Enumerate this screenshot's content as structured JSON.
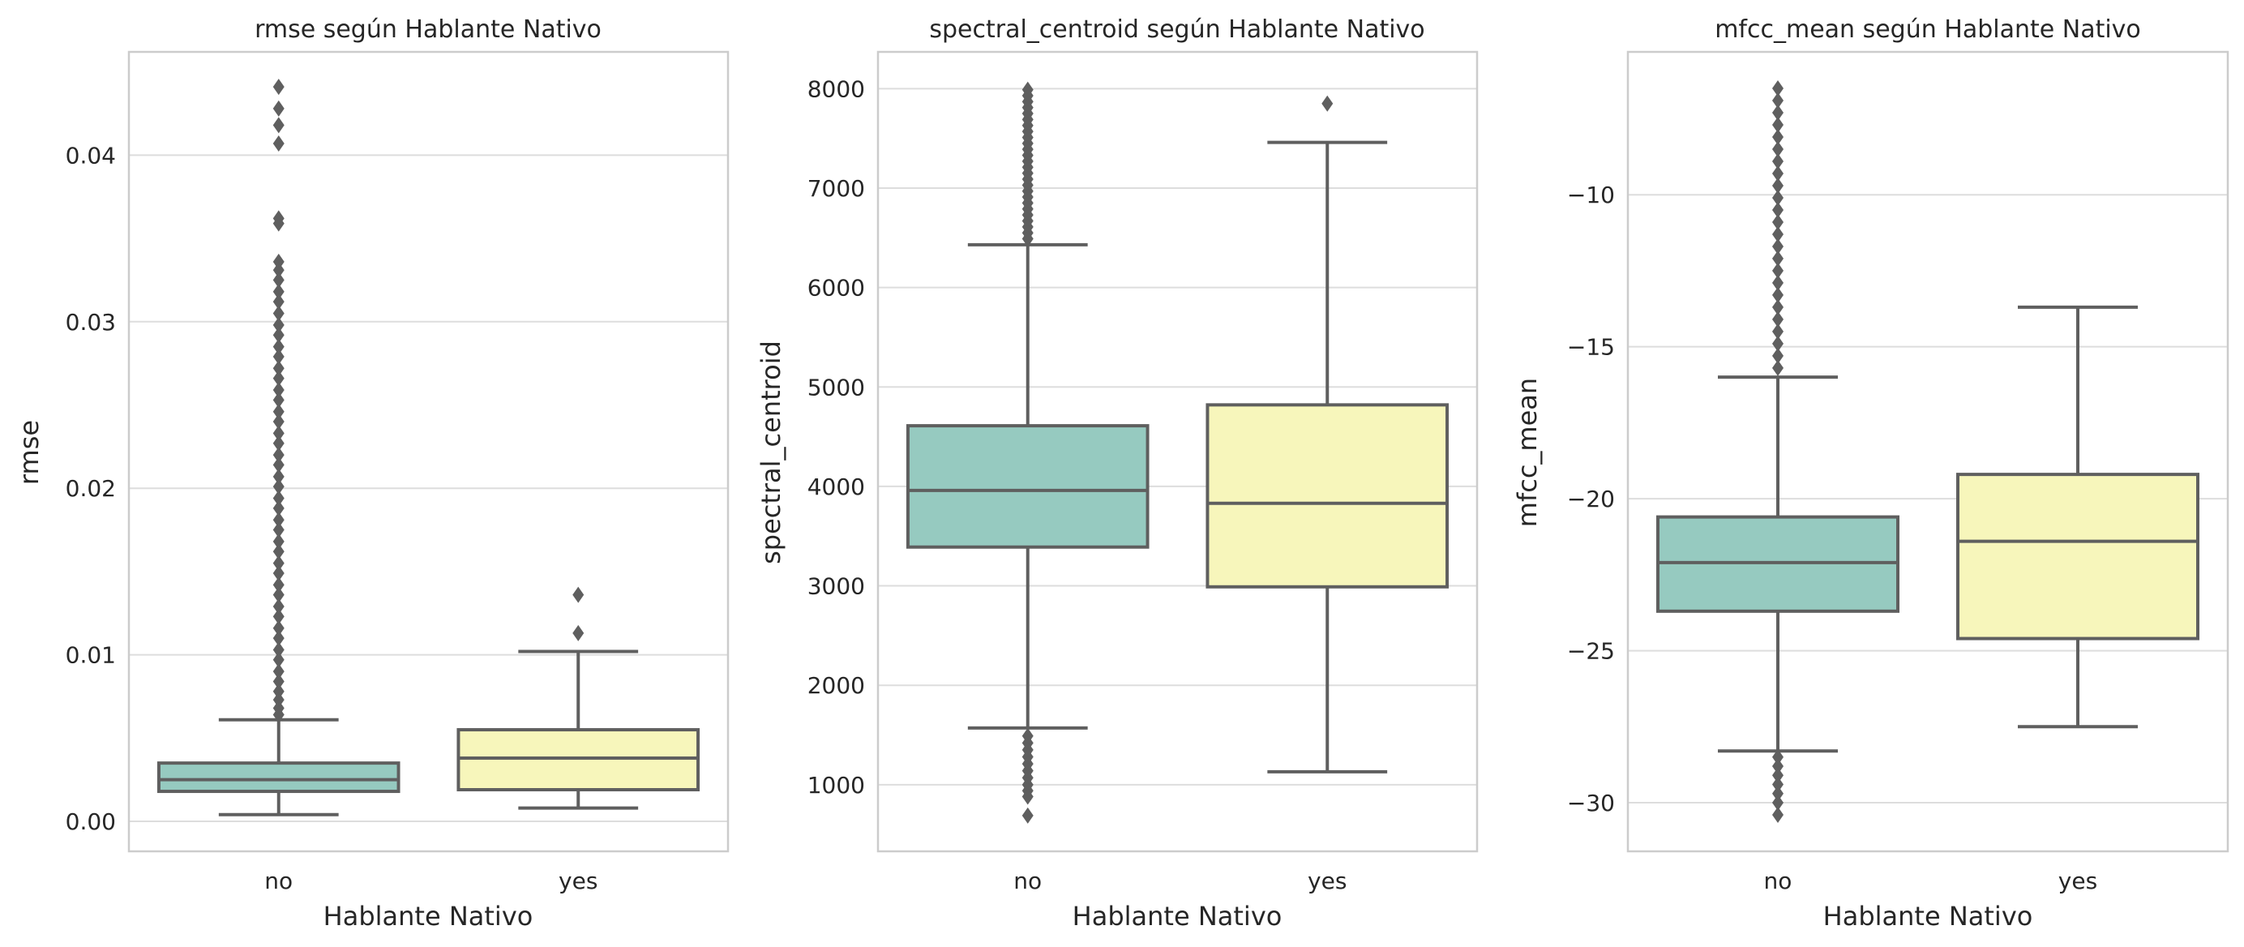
{
  "chart_data": [
    {
      "type": "box",
      "title": "rmse según Hablante Nativo",
      "xlabel": "Hablante Nativo",
      "ylabel": "rmse",
      "categories": [
        "no",
        "yes"
      ],
      "ylim": [
        -0.0018,
        0.0462
      ],
      "yticks": [
        0.0,
        0.01,
        0.02,
        0.03,
        0.04
      ],
      "ytick_labels": [
        "0.00",
        "0.01",
        "0.02",
        "0.03",
        "0.04"
      ],
      "grid": true,
      "boxes": [
        {
          "category": "no",
          "color": "#96cac0",
          "whislo": 0.0004,
          "q1": 0.0018,
          "median": 0.0025,
          "q3": 0.0035,
          "whishi": 0.0061,
          "fliers": [
            0.0441,
            0.0428,
            0.0418,
            0.0407,
            0.0362,
            0.0359,
            0.0336,
            0.0331,
            0.0325,
            0.0318,
            0.0312,
            0.0305,
            0.0298,
            0.0292,
            0.0285,
            0.0279,
            0.0272,
            0.0266,
            0.0259,
            0.0253,
            0.0246,
            0.024,
            0.0233,
            0.0227,
            0.022,
            0.0214,
            0.0207,
            0.0201,
            0.0194,
            0.0188,
            0.0181,
            0.0175,
            0.0168,
            0.0162,
            0.0155,
            0.0149,
            0.0142,
            0.0136,
            0.0129,
            0.0123,
            0.0116,
            0.011,
            0.0103,
            0.0097,
            0.009,
            0.0084,
            0.0078,
            0.0073,
            0.0068,
            0.0064
          ]
        },
        {
          "category": "yes",
          "color": "#f7f6bb",
          "whislo": 0.0008,
          "q1": 0.0019,
          "median": 0.0038,
          "q3": 0.0055,
          "whishi": 0.0102,
          "fliers": [
            0.0136,
            0.0113
          ]
        }
      ]
    },
    {
      "type": "box",
      "title": "spectral_centroid según Hablante Nativo",
      "xlabel": "Hablante Nativo",
      "ylabel": "spectral_centroid",
      "categories": [
        "no",
        "yes"
      ],
      "ylim": [
        330,
        8370
      ],
      "yticks": [
        1000,
        2000,
        3000,
        4000,
        5000,
        6000,
        7000,
        8000
      ],
      "ytick_labels": [
        "1000",
        "2000",
        "3000",
        "4000",
        "5000",
        "6000",
        "7000",
        "8000"
      ],
      "grid": true,
      "boxes": [
        {
          "category": "no",
          "color": "#96cac0",
          "whislo": 1570,
          "q1": 3390,
          "median": 3960,
          "q3": 4610,
          "whishi": 6430,
          "fliers": [
            7990,
            7930,
            7870,
            7810,
            7750,
            7690,
            7630,
            7570,
            7510,
            7450,
            7390,
            7330,
            7270,
            7210,
            7150,
            7090,
            7030,
            6970,
            6910,
            6850,
            6790,
            6730,
            6670,
            6610,
            6550,
            6490,
            1490,
            1420,
            1350,
            1280,
            1210,
            1140,
            1070,
            1000,
            940,
            880,
            690
          ]
        },
        {
          "category": "yes",
          "color": "#f7f6bb",
          "whislo": 1130,
          "q1": 2990,
          "median": 3830,
          "q3": 4820,
          "whishi": 7460,
          "fliers": [
            7850
          ]
        }
      ]
    },
    {
      "type": "box",
      "title": "mfcc_mean según Hablante Nativo",
      "xlabel": "Hablante Nativo",
      "ylabel": "mfcc_mean",
      "categories": [
        "no",
        "yes"
      ],
      "ylim": [
        -31.6,
        -5.3
      ],
      "yticks": [
        -30,
        -25,
        -20,
        -15,
        -10
      ],
      "ytick_labels": [
        "−30",
        "−25",
        "−20",
        "−15",
        "−10"
      ],
      "grid": true,
      "boxes": [
        {
          "category": "no",
          "color": "#96cac0",
          "whislo": -28.3,
          "q1": -23.7,
          "median": -22.1,
          "q3": -20.6,
          "whishi": -16.0,
          "fliers": [
            -6.5,
            -6.9,
            -7.3,
            -7.7,
            -8.1,
            -8.5,
            -8.9,
            -9.3,
            -9.7,
            -10.1,
            -10.5,
            -10.9,
            -11.3,
            -11.7,
            -12.1,
            -12.5,
            -12.9,
            -13.3,
            -13.7,
            -14.1,
            -14.5,
            -14.9,
            -15.3,
            -15.7,
            -28.5,
            -28.8,
            -29.1,
            -29.4,
            -29.7,
            -30.0,
            -30.4
          ]
        },
        {
          "category": "yes",
          "color": "#f7f6bb",
          "whislo": -27.5,
          "q1": -24.6,
          "median": -21.4,
          "q3": -19.2,
          "whishi": -13.7,
          "fliers": []
        }
      ]
    }
  ]
}
